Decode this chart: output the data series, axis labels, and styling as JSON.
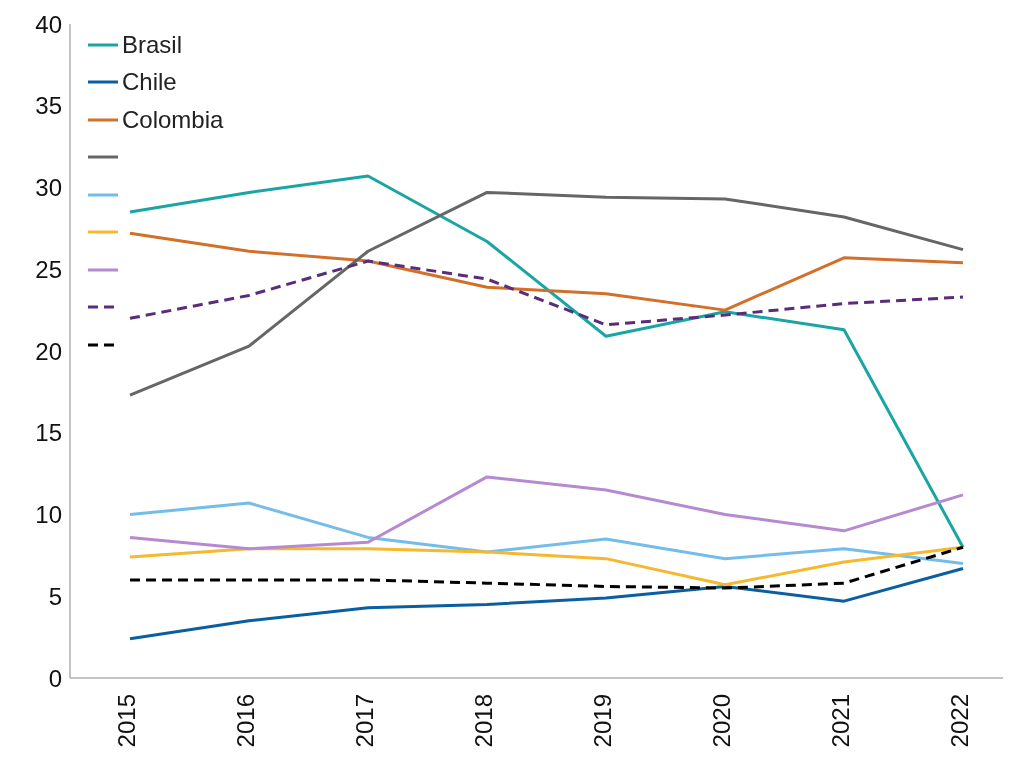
{
  "chart_data": {
    "type": "line",
    "categories": [
      "2015",
      "2016",
      "2017",
      "2018",
      "2019",
      "2020",
      "2021",
      "2022"
    ],
    "series": [
      {
        "name": "Brasil",
        "color": "#1aa5a5",
        "values": [
          28.5,
          29.7,
          30.7,
          26.7,
          20.9,
          22.4,
          21.3,
          8.0
        ]
      },
      {
        "name": "Chile",
        "color": "#0a5fa0",
        "values": [
          2.4,
          3.5,
          4.3,
          4.5,
          4.9,
          5.6,
          4.7,
          6.7
        ]
      },
      {
        "name": "Colombia",
        "color": "#d2702a",
        "values": [
          27.2,
          26.1,
          25.5,
          23.9,
          23.5,
          22.5,
          25.7,
          25.4
        ]
      },
      {
        "color": "#666666",
        "values": [
          17.3,
          20.3,
          26.1,
          29.7,
          29.4,
          29.3,
          28.2,
          26.2
        ]
      },
      {
        "color": "#74bde8",
        "values": [
          10.0,
          10.7,
          8.6,
          7.7,
          8.5,
          7.3,
          7.9,
          7.0
        ]
      },
      {
        "color": "#f5b82e",
        "values": [
          7.4,
          7.9,
          7.9,
          7.7,
          7.3,
          5.7,
          7.1,
          8.0
        ]
      },
      {
        "color": "#b58ad0",
        "values": [
          8.6,
          7.9,
          8.3,
          12.3,
          11.5,
          10.0,
          9.0,
          11.2
        ]
      },
      {
        "color": "#5a2d7a",
        "line_style": "dashed",
        "values": [
          22.0,
          23.4,
          25.5,
          24.4,
          21.6,
          22.2,
          22.9,
          23.3
        ]
      },
      {
        "color": "#000000",
        "line_style": "dashed",
        "values": [
          6.0,
          6.0,
          6.0,
          5.8,
          5.6,
          5.5,
          5.8,
          8.0
        ]
      }
    ],
    "ylim": [
      0,
      40
    ],
    "yticks": [
      0,
      5,
      10,
      15,
      20,
      25,
      30,
      35,
      40
    ],
    "grid": false,
    "legend": "top left",
    "marker": "none",
    "line_style": "solid"
  }
}
